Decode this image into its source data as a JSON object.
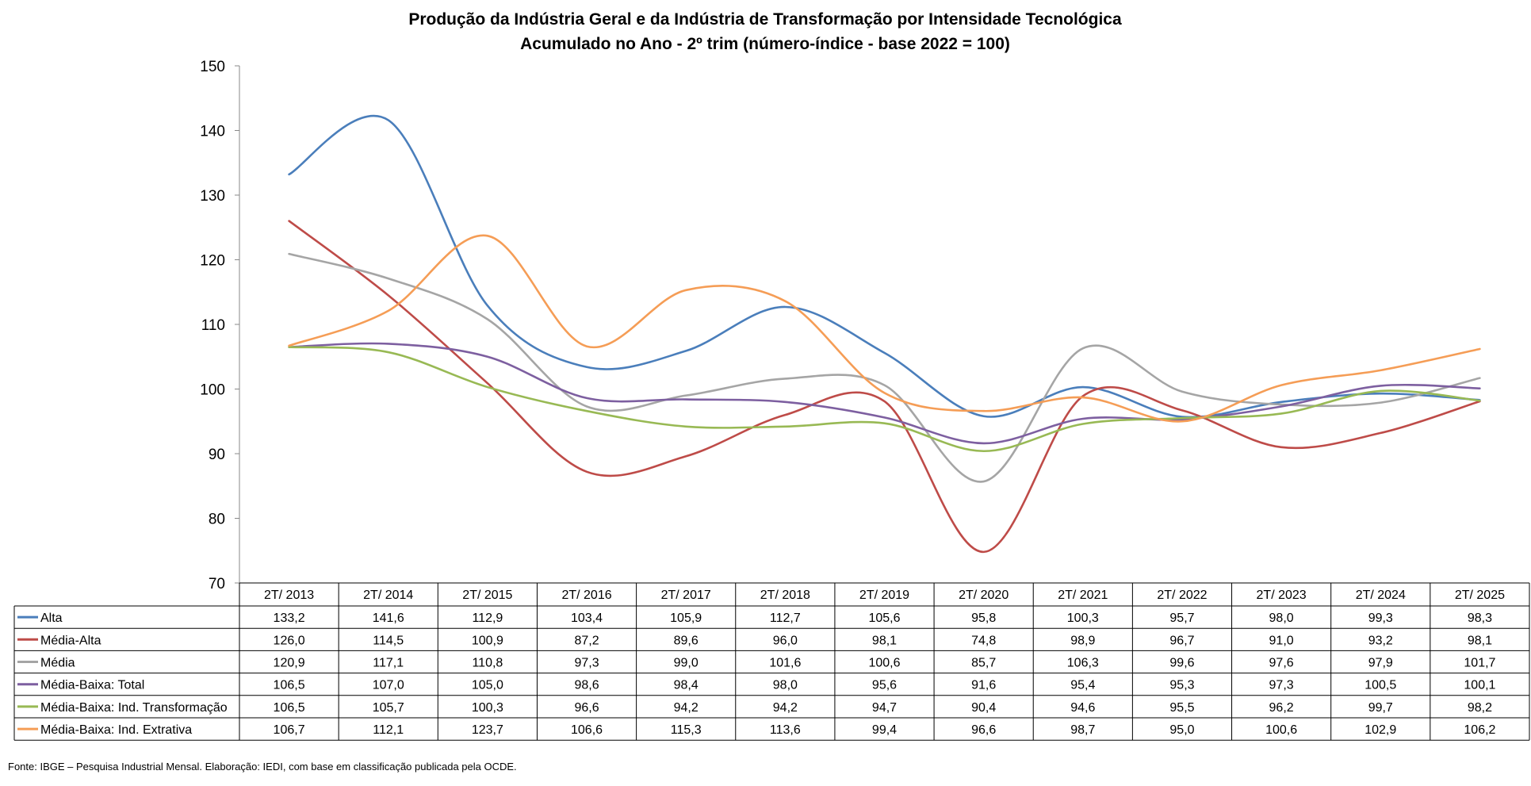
{
  "chart_data": {
    "type": "line",
    "title": "Produção da Indústria Geral e da Indústria de Transformação por Intensidade Tecnológica",
    "subtitle": "Acumulado no Ano - 2º trim (número-índice - base 2022 = 100)",
    "xlabel": "",
    "ylabel": "",
    "ylim": [
      70,
      150
    ],
    "yticks": [
      "70",
      "80",
      "90",
      "100",
      "110",
      "120",
      "130",
      "140",
      "150"
    ],
    "grid": false,
    "legend": "data-table",
    "categories": [
      "2T/ 2013",
      "2T/ 2014",
      "2T/ 2015",
      "2T/ 2016",
      "2T/ 2017",
      "2T/ 2018",
      "2T/ 2019",
      "2T/ 2020",
      "2T/ 2021",
      "2T/ 2022",
      "2T/ 2023",
      "2T/ 2024",
      "2T/ 2025"
    ],
    "series": [
      {
        "name": "Alta",
        "color": "#4a7ebb",
        "values": [
          133.2,
          141.6,
          112.9,
          103.4,
          105.9,
          112.7,
          105.6,
          95.8,
          100.3,
          95.7,
          98.0,
          99.3,
          98.3
        ],
        "labels": [
          "133,2",
          "141,6",
          "112,9",
          "103,4",
          "105,9",
          "112,7",
          "105,6",
          "95,8",
          "100,3",
          "95,7",
          "98,0",
          "99,3",
          "98,3"
        ]
      },
      {
        "name": "Média-Alta",
        "color": "#be4b48",
        "values": [
          126.0,
          114.5,
          100.9,
          87.2,
          89.6,
          96.0,
          98.1,
          74.8,
          98.9,
          96.7,
          91.0,
          93.2,
          98.1
        ],
        "labels": [
          "126,0",
          "114,5",
          "100,9",
          "87,2",
          "89,6",
          "96,0",
          "98,1",
          "74,8",
          "98,9",
          "96,7",
          "91,0",
          "93,2",
          "98,1"
        ]
      },
      {
        "name": "Média",
        "color": "#a5a5a5",
        "values": [
          120.9,
          117.1,
          110.8,
          97.3,
          99.0,
          101.6,
          100.6,
          85.7,
          106.3,
          99.6,
          97.6,
          97.9,
          101.7
        ],
        "labels": [
          "120,9",
          "117,1",
          "110,8",
          "97,3",
          "99,0",
          "101,6",
          "100,6",
          "85,7",
          "106,3",
          "99,6",
          "97,6",
          "97,9",
          "101,7"
        ]
      },
      {
        "name": "Média-Baixa: Total",
        "color": "#7d5fa0",
        "values": [
          106.5,
          107.0,
          105.0,
          98.6,
          98.4,
          98.0,
          95.6,
          91.6,
          95.4,
          95.3,
          97.3,
          100.5,
          100.1
        ],
        "labels": [
          "106,5",
          "107,0",
          "105,0",
          "98,6",
          "98,4",
          "98,0",
          "95,6",
          "91,6",
          "95,4",
          "95,3",
          "97,3",
          "100,5",
          "100,1"
        ]
      },
      {
        "name": "Média-Baixa: Ind. Transformação",
        "color": "#98b954",
        "values": [
          106.5,
          105.7,
          100.3,
          96.6,
          94.2,
          94.2,
          94.7,
          90.4,
          94.6,
          95.5,
          96.2,
          99.7,
          98.2
        ],
        "labels": [
          "106,5",
          "105,7",
          "100,3",
          "96,6",
          "94,2",
          "94,2",
          "94,7",
          "90,4",
          "94,6",
          "95,5",
          "96,2",
          "99,7",
          "98,2"
        ]
      },
      {
        "name": "Média-Baixa: Ind. Extrativa",
        "color": "#f59d56",
        "values": [
          106.7,
          112.1,
          123.7,
          106.6,
          115.3,
          113.6,
          99.4,
          96.6,
          98.7,
          95.0,
          100.6,
          102.9,
          106.2
        ],
        "labels": [
          "106,7",
          "112,1",
          "123,7",
          "106,6",
          "115,3",
          "113,6",
          "99,4",
          "96,6",
          "98,7",
          "95,0",
          "100,6",
          "102,9",
          "106,2"
        ]
      }
    ]
  },
  "source_note": "Fonte: IBGE – Pesquisa Industrial Mensal. Elaboração: IEDI, com base em classificação publicada pela OCDE."
}
